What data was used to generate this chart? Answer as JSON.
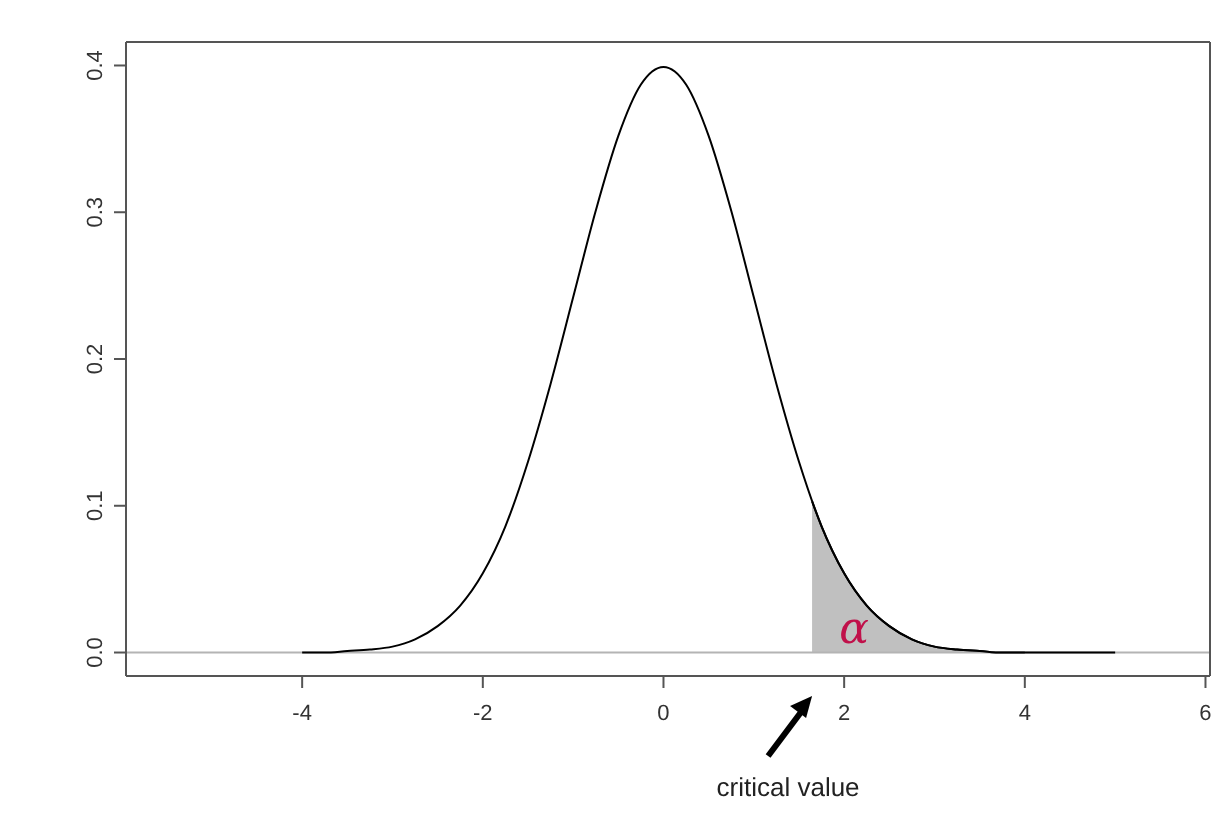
{
  "chart_data": {
    "type": "line",
    "xlim": [
      -5.95,
      6.05
    ],
    "xticks": [
      -4,
      -2,
      0,
      2,
      4,
      6
    ],
    "ylim": [
      -0.016,
      0.416
    ],
    "yticks": [
      {
        "value": 0,
        "label": "0.0"
      },
      0.1,
      0.2,
      0.3,
      0.4
    ],
    "marker": "none",
    "line_style": "solid",
    "series": [
      {
        "color": "#000000",
        "x": [
          -4,
          -3.75,
          -3.5,
          -3.25,
          -3,
          -2.75,
          -2.5,
          -2.25,
          -2,
          -1.75,
          -1.5,
          -1.25,
          -1,
          -0.75,
          -0.5,
          -0.25,
          0,
          0.25,
          0.5,
          0.75,
          1,
          1.25,
          1.5,
          1.75,
          2,
          2.25,
          2.5,
          2.75,
          3,
          3.25,
          3.5,
          3.75,
          4,
          4.25,
          4.5,
          4.75,
          5
        ],
        "values": [
          0,
          0,
          0.001,
          0.002,
          0.004,
          0.009,
          0.018,
          0.032,
          0.054,
          0.086,
          0.13,
          0.183,
          0.242,
          0.301,
          0.352,
          0.387,
          0.399,
          0.387,
          0.352,
          0.301,
          0.242,
          0.183,
          0.13,
          0.086,
          0.054,
          0.032,
          0.018,
          0.009,
          0.004,
          0.002,
          0.001,
          0,
          0,
          0,
          0,
          0,
          0
        ]
      },
      {
        "type": "area",
        "name": "α",
        "color": "#c0c0c0",
        "x": [
          1.645,
          1.75,
          2,
          2.25,
          2.5,
          2.75,
          3,
          3.25,
          3.5,
          3.75,
          4
        ],
        "values": [
          0.103,
          0.086,
          0.054,
          0.032,
          0.018,
          0.009,
          0.004,
          0.002,
          0.001,
          0,
          0
        ]
      }
    ],
    "ref_lines": [
      {
        "axis": "y",
        "value": 0,
        "color": "#b4b4b4"
      }
    ],
    "annotations": [
      "critical value"
    ]
  }
}
